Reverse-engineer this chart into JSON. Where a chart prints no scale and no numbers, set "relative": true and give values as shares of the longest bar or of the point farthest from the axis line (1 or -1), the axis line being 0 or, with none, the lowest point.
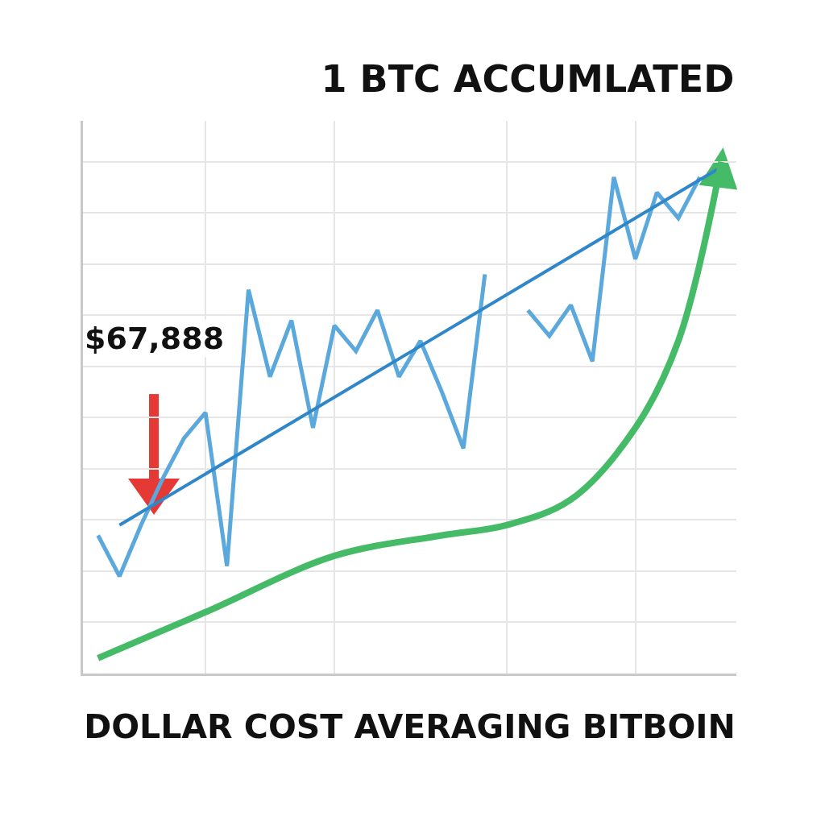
{
  "chart_data": {
    "type": "line",
    "title": "1 BTC ACCUMLATED",
    "xlabel": "DOLLAR COST AVERAGING BITBOIN",
    "relative": true,
    "grid": true,
    "tick_labels": false,
    "categories": [
      null,
      null,
      null,
      null,
      null,
      null,
      null,
      null,
      null,
      null,
      null,
      null,
      null,
      null,
      null,
      null,
      null,
      null,
      null,
      null,
      null,
      null,
      null,
      null,
      null,
      null,
      null,
      null,
      null,
      null
    ],
    "annotations": [
      "$67,888"
    ],
    "series": [
      {
        "color": "#5aa8dc",
        "values": [
          0.27,
          0.19,
          0.29,
          0.38,
          0.46,
          0.51,
          0.21,
          0.75,
          0.58,
          0.69,
          0.48,
          0.68,
          0.63,
          0.71,
          0.58,
          0.65,
          0.55,
          0.44,
          0.78,
          null,
          0.71,
          0.66,
          0.72,
          0.61,
          0.97,
          0.81,
          0.94,
          0.89,
          0.97,
          null
        ]
      },
      {
        "color": "#2f86c8",
        "values": [
          null,
          0.29,
          null,
          null,
          null,
          null,
          null,
          null,
          null,
          null,
          null,
          null,
          null,
          null,
          null,
          null,
          null,
          null,
          null,
          null,
          null,
          null,
          null,
          null,
          null,
          null,
          null,
          null,
          null,
          0.99
        ]
      },
      {
        "color": "#45bb68",
        "values": [
          0.03,
          null,
          null,
          null,
          null,
          0.12,
          null,
          null,
          null,
          null,
          null,
          0.23,
          null,
          null,
          null,
          null,
          0.27,
          null,
          null,
          0.29,
          null,
          null,
          0.34,
          null,
          null,
          0.48,
          null,
          0.65,
          null,
          1
        ]
      }
    ]
  }
}
